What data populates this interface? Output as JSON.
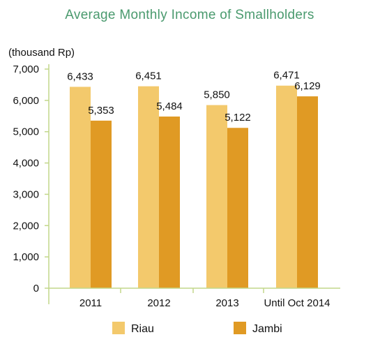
{
  "chart_data": {
    "type": "bar",
    "title": "Average Monthly Income of Smallholders",
    "ylabel": "(thousand Rp)",
    "xlabel": "",
    "categories": [
      "2011",
      "2012",
      "2013",
      "Until Oct 2014"
    ],
    "series": [
      {
        "name": "Riau",
        "values": [
          6433,
          6451,
          5850,
          6471
        ],
        "labels": [
          "6,433",
          "6,451",
          "5,850",
          "6,471"
        ]
      },
      {
        "name": "Jambi",
        "values": [
          5353,
          5484,
          5122,
          6129
        ],
        "labels": [
          "5,353",
          "5,484",
          "5,122",
          "6,129"
        ]
      }
    ],
    "ylim": [
      0,
      7000
    ],
    "yticks": [
      0,
      1000,
      2000,
      3000,
      4000,
      5000,
      6000,
      7000
    ],
    "ytick_labels": [
      "0",
      "1,000",
      "2,000",
      "3,000",
      "4,000",
      "5,000",
      "6,000",
      "7,000"
    ],
    "grid": false,
    "legend_position": "bottom"
  },
  "colors": {
    "title": "#4a9a6e",
    "axis": "#c2d78a",
    "riau": "#f3c96c",
    "jambi": "#e09a24",
    "text": "#111111"
  }
}
